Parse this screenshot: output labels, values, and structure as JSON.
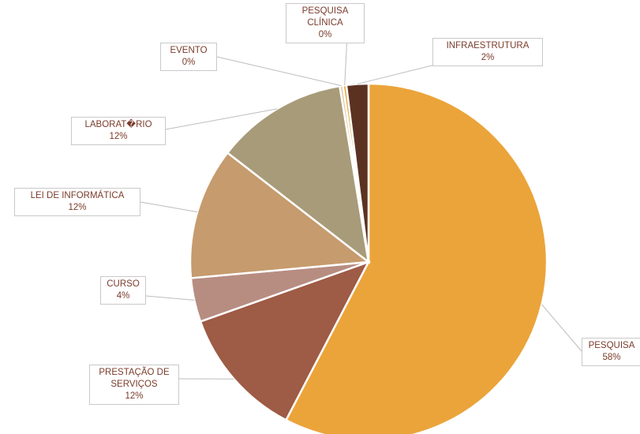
{
  "chart_data": {
    "type": "pie",
    "categories": [
      "PESQUISA",
      "PRESTAÇÃO DE SERVIÇOS",
      "CURSO",
      "LEI DE INFORMÁTICA",
      "LABORAT�RIO",
      "EVENTO",
      "PESQUISA CLÍNICA",
      "INFRAESTRUTURA"
    ],
    "values": [
      58,
      12,
      4,
      12,
      12,
      0.3,
      0.3,
      2
    ],
    "value_labels": [
      "58%",
      "12%",
      "4%",
      "12%",
      "12%",
      "0%",
      "0%",
      "2%"
    ],
    "colors": [
      "#eba43a",
      "#9e5b45",
      "#b78d82",
      "#c69b6d",
      "#a89b79",
      "#dccaa2",
      "#e8a33d",
      "#5b3222"
    ]
  }
}
